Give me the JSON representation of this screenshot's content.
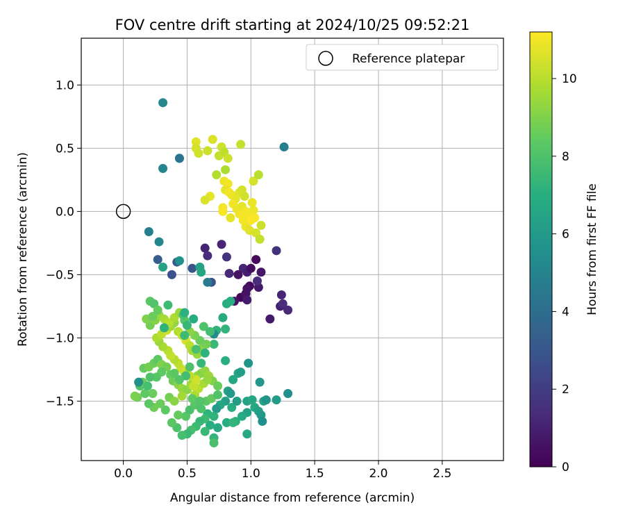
{
  "chart_data": {
    "type": "scatter",
    "title": "FOV centre drift starting at 2024/10/25 09:52:21",
    "xlabel": "Angular distance from reference (arcmin)",
    "ylabel": "Rotation from reference (arcmin)",
    "xlim": [
      -0.33,
      2.98
    ],
    "ylim": [
      -1.97,
      1.37
    ],
    "xticks": [
      0.0,
      0.5,
      1.0,
      1.5,
      2.0,
      2.5
    ],
    "xtick_labels": [
      "0.0",
      "0.5",
      "1.0",
      "1.5",
      "2.0",
      "2.5"
    ],
    "yticks": [
      1.0,
      0.5,
      0.0,
      -0.5,
      -1.0,
      -1.5
    ],
    "ytick_labels": [
      "1.0",
      "0.5",
      "0.0",
      "−0.5",
      "−1.0",
      "−1.5"
    ],
    "grid": true,
    "legend": {
      "position": "top-right",
      "entries": [
        "Reference platepar"
      ]
    },
    "reference_point": {
      "label": "Reference platepar",
      "x": 0.0,
      "y": 0.0,
      "marker": "open-circle"
    },
    "colorbar": {
      "label": "Hours from first FF file",
      "colormap": "viridis",
      "range": [
        0,
        11.2
      ],
      "ticks": [
        0,
        2,
        4,
        6,
        8,
        10
      ],
      "tick_labels": [
        "0",
        "2",
        "4",
        "6",
        "8",
        "10"
      ]
    },
    "points": [
      [
        0.31,
        0.86,
        5.2
      ],
      [
        0.31,
        0.34,
        5.0
      ],
      [
        0.44,
        0.42,
        4.6
      ],
      [
        0.44,
        0.42,
        4.4
      ],
      [
        1.26,
        0.51,
        4.8
      ],
      [
        0.57,
        0.55,
        10.7
      ],
      [
        0.57,
        0.5,
        10.5
      ],
      [
        0.59,
        0.46,
        10.4
      ],
      [
        0.66,
        0.48,
        10.3
      ],
      [
        0.7,
        0.57,
        10.6
      ],
      [
        0.75,
        0.44,
        10.2
      ],
      [
        0.77,
        0.51,
        10.4
      ],
      [
        0.79,
        0.47,
        10.1
      ],
      [
        0.82,
        0.42,
        10.3
      ],
      [
        0.92,
        0.53,
        10.2
      ],
      [
        0.73,
        0.29,
        9.9
      ],
      [
        0.8,
        0.33,
        9.8
      ],
      [
        0.68,
        0.12,
        10.8
      ],
      [
        0.64,
        0.09,
        10.6
      ],
      [
        0.79,
        0.24,
        10.9
      ],
      [
        0.82,
        0.22,
        11.0
      ],
      [
        0.8,
        0.17,
        10.8
      ],
      [
        0.83,
        0.15,
        11.0
      ],
      [
        0.85,
        0.13,
        10.9
      ],
      [
        0.88,
        0.1,
        10.8
      ],
      [
        0.91,
        0.15,
        10.7
      ],
      [
        0.93,
        0.17,
        10.5
      ],
      [
        0.95,
        0.12,
        10.4
      ],
      [
        1.02,
        0.24,
        10.5
      ],
      [
        1.06,
        0.29,
        10.0
      ],
      [
        0.78,
        0.03,
        11.0
      ],
      [
        0.78,
        0.0,
        11.1
      ],
      [
        0.86,
        0.06,
        11.0
      ],
      [
        0.89,
        0.02,
        10.9
      ],
      [
        0.93,
        0.04,
        10.8
      ],
      [
        0.96,
        0.0,
        11.0
      ],
      [
        0.99,
        -0.02,
        11.1
      ],
      [
        1.01,
        0.07,
        10.9
      ],
      [
        0.84,
        -0.05,
        10.8
      ],
      [
        0.91,
        -0.02,
        11.0
      ],
      [
        0.97,
        -0.05,
        11.1
      ],
      [
        1.0,
        -0.07,
        11.2
      ],
      [
        0.96,
        -0.12,
        10.9
      ],
      [
        0.99,
        -0.15,
        10.7
      ],
      [
        1.04,
        -0.17,
        10.5
      ],
      [
        1.08,
        -0.11,
        10.3
      ],
      [
        1.07,
        -0.22,
        10.2
      ],
      [
        1.02,
        0.01,
        10.9
      ],
      [
        0.94,
        -0.07,
        11.0
      ],
      [
        1.03,
        -0.05,
        11.1
      ],
      [
        0.64,
        -0.29,
        1.1
      ],
      [
        0.66,
        -0.35,
        1.4
      ],
      [
        0.77,
        -0.26,
        1.2
      ],
      [
        0.81,
        -0.36,
        1.6
      ],
      [
        1.04,
        -0.38,
        0.3
      ],
      [
        0.94,
        -0.45,
        1.2
      ],
      [
        0.9,
        -0.5,
        0.6
      ],
      [
        0.97,
        -0.48,
        1.0
      ],
      [
        1.0,
        -0.45,
        0.4
      ],
      [
        1.08,
        -0.48,
        0.7
      ],
      [
        0.99,
        -0.59,
        0.3
      ],
      [
        1.06,
        -0.6,
        0.8
      ],
      [
        1.05,
        -0.55,
        1.4
      ],
      [
        0.97,
        -0.61,
        0.5
      ],
      [
        0.92,
        -0.68,
        0.2
      ],
      [
        0.87,
        -0.71,
        0.6
      ],
      [
        0.96,
        -0.65,
        0.5
      ],
      [
        0.97,
        -0.7,
        0.9
      ],
      [
        1.24,
        -0.66,
        1.2
      ],
      [
        1.23,
        -0.75,
        1.0
      ],
      [
        1.25,
        -0.73,
        1.4
      ],
      [
        1.29,
        -0.78,
        1.3
      ],
      [
        1.15,
        -0.85,
        0.8
      ],
      [
        1.2,
        -0.31,
        1.6
      ],
      [
        0.83,
        -0.49,
        1.3
      ],
      [
        0.69,
        -0.56,
        2.9
      ],
      [
        0.54,
        -0.45,
        3.0
      ],
      [
        0.42,
        -0.4,
        3.2
      ],
      [
        0.38,
        -0.5,
        2.8
      ],
      [
        0.27,
        -0.38,
        3.3
      ],
      [
        0.2,
        -0.16,
        4.8
      ],
      [
        0.28,
        -0.24,
        5.1
      ],
      [
        0.44,
        -0.39,
        5.6
      ],
      [
        0.31,
        -0.44,
        6.4
      ],
      [
        0.6,
        -0.44,
        6.3
      ],
      [
        0.61,
        -0.48,
        6.6
      ],
      [
        0.66,
        -0.56,
        4.6
      ],
      [
        0.81,
        -0.73,
        6.9
      ],
      [
        0.84,
        -0.71,
        7.0
      ],
      [
        0.78,
        -0.84,
        6.8
      ],
      [
        0.8,
        -0.93,
        7.3
      ],
      [
        0.73,
        -0.94,
        7.2
      ],
      [
        0.71,
        -0.97,
        5.4
      ],
      [
        0.71,
        -1.05,
        7.5
      ],
      [
        0.8,
        -1.18,
        7.0
      ],
      [
        0.98,
        -1.2,
        5.8
      ],
      [
        0.9,
        -1.28,
        6.5
      ],
      [
        0.92,
        -1.27,
        6.2
      ],
      [
        0.86,
        -1.33,
        6.6
      ],
      [
        1.07,
        -1.35,
        5.9
      ],
      [
        0.82,
        -1.42,
        6.4
      ],
      [
        0.84,
        -1.44,
        6.0
      ],
      [
        0.8,
        -1.5,
        6.3
      ],
      [
        0.76,
        -1.53,
        6.7
      ],
      [
        0.73,
        -1.56,
        6.1
      ],
      [
        0.85,
        -1.55,
        6.9
      ],
      [
        0.89,
        -1.5,
        6.2
      ],
      [
        0.97,
        -1.5,
        6.4
      ],
      [
        1.01,
        -1.49,
        6.6
      ],
      [
        1.1,
        -1.5,
        6.5
      ],
      [
        1.12,
        -1.49,
        5.8
      ],
      [
        1.03,
        -1.55,
        6.7
      ],
      [
        1.06,
        -1.58,
        6.3
      ],
      [
        1.08,
        -1.61,
        6.0
      ],
      [
        1.09,
        -1.66,
        5.6
      ],
      [
        0.97,
        -1.59,
        6.4
      ],
      [
        0.93,
        -1.62,
        6.8
      ],
      [
        0.88,
        -1.66,
        7.1
      ],
      [
        0.81,
        -1.67,
        6.9
      ],
      [
        0.71,
        -1.62,
        7.2
      ],
      [
        0.74,
        -1.71,
        6.8
      ],
      [
        0.86,
        -1.67,
        7.3
      ],
      [
        0.97,
        -1.76,
        6.7
      ],
      [
        1.29,
        -1.44,
        5.5
      ],
      [
        1.2,
        -1.49,
        6.2
      ],
      [
        0.66,
        -1.6,
        7.2
      ],
      [
        0.64,
        -1.64,
        7.6
      ],
      [
        0.6,
        -1.66,
        7.4
      ],
      [
        0.68,
        -1.69,
        7.0
      ],
      [
        0.71,
        -1.79,
        7.3
      ],
      [
        0.71,
        -1.83,
        7.9
      ],
      [
        0.64,
        -1.74,
        7.5
      ],
      [
        0.57,
        -1.7,
        7.6
      ],
      [
        0.53,
        -1.73,
        7.8
      ],
      [
        0.5,
        -1.76,
        7.5
      ],
      [
        0.46,
        -1.77,
        7.8
      ],
      [
        0.42,
        -1.71,
        8.0
      ],
      [
        0.38,
        -1.67,
        8.3
      ],
      [
        0.43,
        -1.61,
        8.5
      ],
      [
        0.49,
        -1.62,
        8.2
      ],
      [
        0.52,
        -1.57,
        7.9
      ],
      [
        0.56,
        -1.53,
        8.2
      ],
      [
        0.61,
        -1.56,
        8.0
      ],
      [
        0.65,
        -1.5,
        8.3
      ],
      [
        0.69,
        -1.48,
        8.5
      ],
      [
        0.74,
        -1.45,
        8.0
      ],
      [
        0.33,
        -1.57,
        8.4
      ],
      [
        0.29,
        -1.52,
        8.6
      ],
      [
        0.24,
        -1.55,
        8.7
      ],
      [
        0.2,
        -1.52,
        8.3
      ],
      [
        0.23,
        -1.44,
        8.6
      ],
      [
        0.17,
        -1.44,
        8.4
      ],
      [
        0.13,
        -1.38,
        8.0
      ],
      [
        0.11,
        -1.47,
        8.7
      ],
      [
        0.09,
        -1.46,
        8.9
      ],
      [
        0.15,
        -1.35,
        8.6
      ],
      [
        0.12,
        -1.35,
        5.6
      ],
      [
        0.16,
        -1.24,
        8.5
      ],
      [
        0.2,
        -1.23,
        8.8
      ],
      [
        0.24,
        -1.2,
        8.6
      ],
      [
        0.27,
        -1.17,
        8.3
      ],
      [
        0.3,
        -1.21,
        9.0
      ],
      [
        0.34,
        -1.23,
        8.8
      ],
      [
        0.37,
        -1.29,
        8.5
      ],
      [
        0.39,
        -1.34,
        8.7
      ],
      [
        0.43,
        -1.37,
        9.1
      ],
      [
        0.46,
        -1.4,
        9.4
      ],
      [
        0.5,
        -1.41,
        9.2
      ],
      [
        0.53,
        -1.37,
        9.5
      ],
      [
        0.56,
        -1.34,
        9.6
      ],
      [
        0.58,
        -1.3,
        9.4
      ],
      [
        0.61,
        -1.28,
        9.1
      ],
      [
        0.64,
        -1.26,
        9.3
      ],
      [
        0.67,
        -1.3,
        9.5
      ],
      [
        0.7,
        -1.34,
        9.0
      ],
      [
        0.74,
        -1.38,
        8.6
      ],
      [
        0.36,
        -1.47,
        8.8
      ],
      [
        0.4,
        -1.5,
        9.2
      ],
      [
        0.46,
        -1.46,
        9.6
      ],
      [
        0.56,
        -1.45,
        9.8
      ],
      [
        0.59,
        -1.4,
        10.0
      ],
      [
        0.63,
        -1.36,
        9.7
      ],
      [
        0.66,
        -1.33,
        9.4
      ],
      [
        0.55,
        -1.38,
        10.2
      ],
      [
        0.57,
        -1.33,
        10.4
      ],
      [
        0.52,
        -1.3,
        10.0
      ],
      [
        0.48,
        -1.27,
        9.8
      ],
      [
        0.45,
        -1.24,
        10.3
      ],
      [
        0.43,
        -1.2,
        10.1
      ],
      [
        0.4,
        -1.17,
        9.9
      ],
      [
        0.37,
        -1.14,
        10.2
      ],
      [
        0.35,
        -1.1,
        10.0
      ],
      [
        0.31,
        -1.07,
        9.7
      ],
      [
        0.28,
        -1.03,
        9.5
      ],
      [
        0.26,
        -1.0,
        9.8
      ],
      [
        0.3,
        -0.97,
        10.1
      ],
      [
        0.34,
        -0.94,
        10.3
      ],
      [
        0.37,
        -0.91,
        9.6
      ],
      [
        0.4,
        -0.88,
        9.3
      ],
      [
        0.43,
        -0.95,
        9.9
      ],
      [
        0.46,
        -0.98,
        10.2
      ],
      [
        0.49,
        -1.02,
        10.5
      ],
      [
        0.52,
        -1.06,
        10.0
      ],
      [
        0.54,
        -1.1,
        9.7
      ],
      [
        0.58,
        -1.13,
        9.4
      ],
      [
        0.62,
        -1.08,
        9.1
      ],
      [
        0.65,
        -1.05,
        8.8
      ],
      [
        0.6,
        -1.02,
        8.6
      ],
      [
        0.56,
        -0.98,
        8.9
      ],
      [
        0.52,
        -0.95,
        9.2
      ],
      [
        0.21,
        -0.9,
        8.8
      ],
      [
        0.25,
        -0.86,
        9.1
      ],
      [
        0.28,
        -0.82,
        9.4
      ],
      [
        0.32,
        -0.85,
        9.7
      ],
      [
        0.36,
        -0.88,
        10.0
      ],
      [
        0.4,
        -0.84,
        9.8
      ],
      [
        0.44,
        -0.8,
        9.5
      ],
      [
        0.48,
        -0.86,
        8.2
      ],
      [
        0.18,
        -0.85,
        9.0
      ],
      [
        0.23,
        -0.83,
        8.6
      ],
      [
        0.21,
        -0.71,
        8.3
      ],
      [
        0.24,
        -0.73,
        8.1
      ],
      [
        0.27,
        -0.78,
        8.5
      ],
      [
        0.35,
        -0.74,
        7.6
      ],
      [
        0.47,
        -0.82,
        7.9
      ],
      [
        0.48,
        -0.8,
        7.1
      ],
      [
        0.55,
        -0.85,
        6.9
      ],
      [
        0.63,
        -0.91,
        8.0
      ],
      [
        0.68,
        -0.95,
        7.7
      ],
      [
        0.5,
        -0.9,
        7.4
      ],
      [
        0.32,
        -0.92,
        7.2
      ],
      [
        0.48,
        -0.98,
        7.6
      ],
      [
        0.57,
        -1.09,
        7.9
      ],
      [
        0.64,
        -1.12,
        7.2
      ],
      [
        0.61,
        -1.2,
        7.4
      ],
      [
        0.52,
        -1.23,
        8.0
      ],
      [
        0.49,
        -1.3,
        7.7
      ],
      [
        0.44,
        -1.33,
        8.1
      ],
      [
        0.4,
        -1.28,
        8.3
      ],
      [
        0.3,
        -1.27,
        8.4
      ],
      [
        0.26,
        -1.31,
        8.2
      ],
      [
        0.21,
        -1.31,
        8.0
      ],
      [
        0.19,
        -1.38,
        7.8
      ],
      [
        0.54,
        -1.48,
        8.4
      ],
      [
        0.6,
        -1.5,
        8.1
      ]
    ]
  }
}
